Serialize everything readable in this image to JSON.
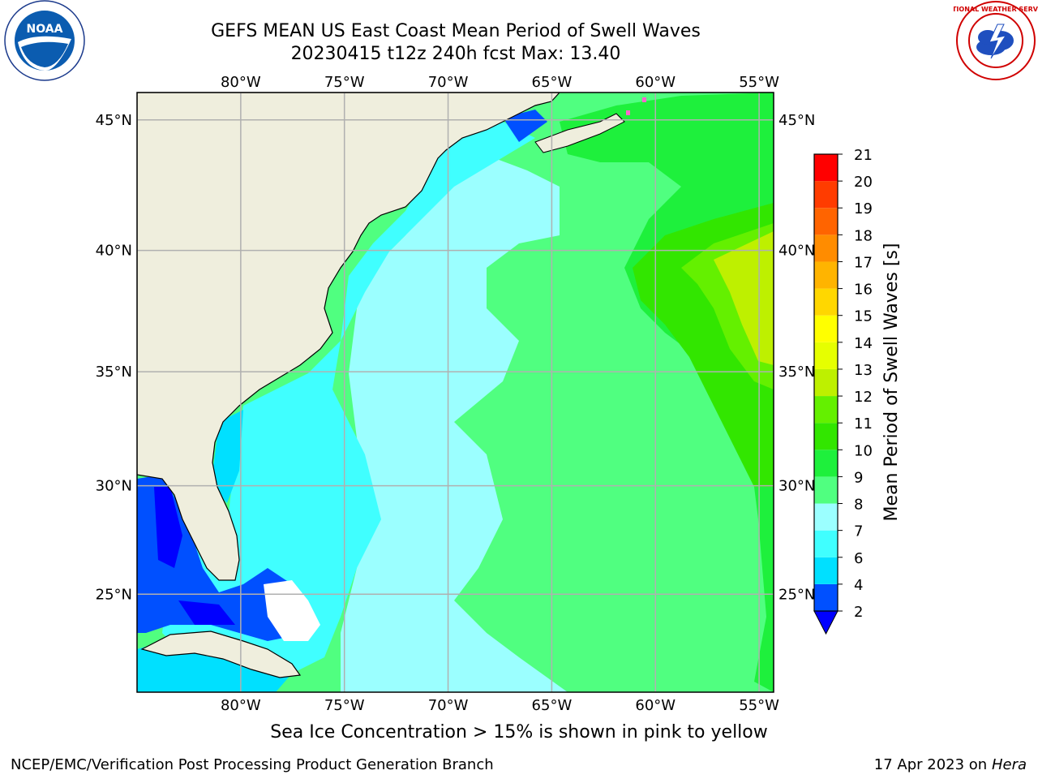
{
  "title": {
    "line1": "GEFS MEAN US East Coast Mean Period of Swell Waves",
    "line2": "20230415 t12z 240h fcst   Max: 13.40"
  },
  "logos": {
    "left": {
      "name": "NOAA",
      "text": "NOAA"
    },
    "right": {
      "name": "National Weather Service",
      "text": "NATIONAL WEATHER SERVICE"
    }
  },
  "map": {
    "lon_range": [
      -85,
      -54.3
    ],
    "lat_range": [
      20.3,
      46
    ],
    "lon_ticks": [
      {
        "value": -80,
        "label": "80°W"
      },
      {
        "value": -75,
        "label": "75°W"
      },
      {
        "value": -70,
        "label": "70°W"
      },
      {
        "value": -65,
        "label": "65°W"
      },
      {
        "value": -60,
        "label": "60°W"
      },
      {
        "value": -55,
        "label": "55°W"
      }
    ],
    "lat_ticks": [
      {
        "value": 45,
        "label": "45°N"
      },
      {
        "value": 40,
        "label": "40°N"
      },
      {
        "value": 35,
        "label": "35°N"
      },
      {
        "value": 30,
        "label": "30°N"
      },
      {
        "value": 25,
        "label": "25°N"
      }
    ],
    "colors": {
      "land": "#efeedd",
      "gridline": "#b0b0b0",
      "coastline": "#000000",
      "no_data": "#ffffff"
    },
    "field": {
      "variable": "Mean Period of Swell Waves",
      "max": 13.4
    }
  },
  "colorbar": {
    "label": "Mean Period of Swell Waves [s]",
    "ticks": [
      "2",
      "4",
      "6",
      "7",
      "8",
      "9",
      "10",
      "11",
      "12",
      "13",
      "14",
      "15",
      "16",
      "17",
      "18",
      "19",
      "20",
      "21"
    ],
    "colors": [
      "#0050ff",
      "#00e0ff",
      "#40ffff",
      "#9bffff",
      "#50ff80",
      "#1ef03c",
      "#32e600",
      "#64f000",
      "#bef000",
      "#e6ff00",
      "#ffff00",
      "#ffd700",
      "#ffb400",
      "#ff8c00",
      "#ff6400",
      "#ff3c00",
      "#ff0000"
    ],
    "under_color": "#0000ff"
  },
  "note": "Sea Ice Concentration > 15% is shown in pink to yellow",
  "footer": {
    "left": "NCEP/EMC/Verification Post Processing Product Generation Branch",
    "right_date": "17 Apr 2023 on ",
    "right_host": "Hera"
  }
}
